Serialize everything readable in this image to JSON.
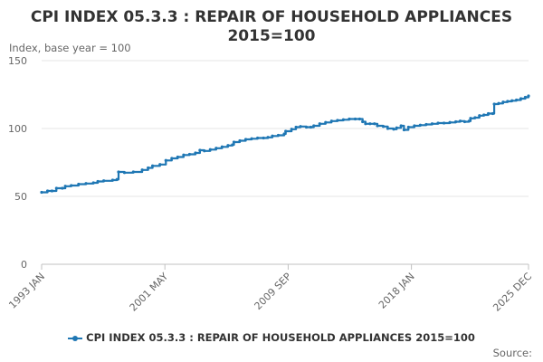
{
  "chart_data": {
    "type": "line",
    "title_lines": [
      "CPI INDEX 05.3.3 : REPAIR OF HOUSEHOLD APPLIANCES",
      "2015=100"
    ],
    "ylabel": "Index, base year = 100",
    "ylim": [
      0,
      150
    ],
    "yticks": [
      0,
      50,
      100,
      150
    ],
    "xlim": [
      1993.0,
      2025.917
    ],
    "xticks": [
      {
        "label": "1993 JAN",
        "x": 1993.0
      },
      {
        "label": "2001 MAY",
        "x": 2001.333
      },
      {
        "label": "2009 SEP",
        "x": 2009.667
      },
      {
        "label": "2018 JAN",
        "x": 2018.0
      },
      {
        "label": "2025 DEC",
        "x": 2025.917
      }
    ],
    "grid": true,
    "legend_position": "bottom",
    "series": [
      {
        "name": "CPI INDEX 05.3.3 : REPAIR OF HOUSEHOLD APPLIANCES 2015=100",
        "color": "#1f77b4",
        "points": [
          [
            1993.0,
            53
          ],
          [
            1993.4,
            54
          ],
          [
            1993.7,
            54
          ],
          [
            1994.0,
            56
          ],
          [
            1994.4,
            56
          ],
          [
            1994.6,
            57.5
          ],
          [
            1995.0,
            58
          ],
          [
            1995.5,
            59
          ],
          [
            1996.0,
            59.5
          ],
          [
            1996.5,
            60
          ],
          [
            1996.8,
            61
          ],
          [
            1997.2,
            61.5
          ],
          [
            1997.8,
            62
          ],
          [
            1998.1,
            62.5
          ],
          [
            1998.2,
            68
          ],
          [
            1998.6,
            67.5
          ],
          [
            1999.2,
            68
          ],
          [
            1999.8,
            69.5
          ],
          [
            2000.2,
            71
          ],
          [
            2000.5,
            72.5
          ],
          [
            2001.0,
            73.5
          ],
          [
            2001.4,
            76.5
          ],
          [
            2001.8,
            78
          ],
          [
            2002.2,
            79
          ],
          [
            2002.6,
            80.5
          ],
          [
            2003.0,
            81
          ],
          [
            2003.4,
            82
          ],
          [
            2003.7,
            84
          ],
          [
            2004.0,
            83.5
          ],
          [
            2004.4,
            84.5
          ],
          [
            2004.8,
            85.5
          ],
          [
            2005.2,
            86.5
          ],
          [
            2005.6,
            87.5
          ],
          [
            2005.9,
            88
          ],
          [
            2006.0,
            90
          ],
          [
            2006.4,
            91
          ],
          [
            2006.8,
            92
          ],
          [
            2007.2,
            92.5
          ],
          [
            2007.6,
            93
          ],
          [
            2008.0,
            93
          ],
          [
            2008.3,
            93.5
          ],
          [
            2008.6,
            94.5
          ],
          [
            2009.0,
            95
          ],
          [
            2009.4,
            96
          ],
          [
            2009.5,
            98
          ],
          [
            2009.9,
            99.5
          ],
          [
            2010.2,
            101
          ],
          [
            2010.5,
            101.5
          ],
          [
            2010.9,
            101
          ],
          [
            2011.2,
            101
          ],
          [
            2011.4,
            102
          ],
          [
            2011.8,
            103.5
          ],
          [
            2012.2,
            104.5
          ],
          [
            2012.6,
            105.5
          ],
          [
            2013.0,
            106
          ],
          [
            2013.4,
            106.5
          ],
          [
            2013.8,
            107
          ],
          [
            2014.2,
            107
          ],
          [
            2014.5,
            107
          ],
          [
            2014.7,
            105
          ],
          [
            2014.9,
            103.5
          ],
          [
            2015.2,
            103.5
          ],
          [
            2015.5,
            103.5
          ],
          [
            2015.7,
            102
          ],
          [
            2016.1,
            101.5
          ],
          [
            2016.4,
            100
          ],
          [
            2016.8,
            99.5
          ],
          [
            2017.0,
            100.5
          ],
          [
            2017.3,
            102
          ],
          [
            2017.5,
            99
          ],
          [
            2017.8,
            101
          ],
          [
            2018.2,
            102
          ],
          [
            2018.6,
            102.5
          ],
          [
            2019.0,
            103
          ],
          [
            2019.4,
            103.5
          ],
          [
            2019.8,
            104
          ],
          [
            2020.2,
            104
          ],
          [
            2020.6,
            104.5
          ],
          [
            2021.0,
            105
          ],
          [
            2021.3,
            105.5
          ],
          [
            2021.6,
            105
          ],
          [
            2021.9,
            105.5
          ],
          [
            2022.0,
            107.5
          ],
          [
            2022.3,
            108
          ],
          [
            2022.6,
            109.5
          ],
          [
            2022.9,
            110
          ],
          [
            2023.2,
            111
          ],
          [
            2023.5,
            111
          ],
          [
            2023.6,
            118
          ],
          [
            2023.9,
            118.5
          ],
          [
            2024.2,
            119.5
          ],
          [
            2024.5,
            120
          ],
          [
            2024.8,
            120.5
          ],
          [
            2025.1,
            121
          ],
          [
            2025.4,
            122
          ],
          [
            2025.7,
            123
          ],
          [
            2025.917,
            124
          ]
        ]
      }
    ],
    "source_label": "Source:"
  }
}
